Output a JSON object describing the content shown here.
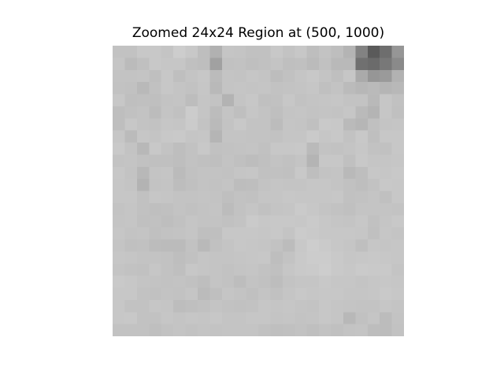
{
  "title": "Zoomed 24x24 Region at (500, 1000)",
  "image": {
    "kind": "grayscale pixel grid",
    "grid_size": [
      24,
      24
    ],
    "pixels": [
      [
        194,
        194,
        200,
        200,
        196,
        205,
        200,
        190,
        177,
        197,
        196,
        193,
        193,
        200,
        195,
        199,
        190,
        195,
        190,
        180,
        130,
        90,
        110,
        150
      ],
      [
        197,
        187,
        192,
        200,
        198,
        198,
        192,
        190,
        161,
        193,
        194,
        191,
        193,
        196,
        191,
        192,
        187,
        193,
        185,
        185,
        112,
        107,
        120,
        138
      ],
      [
        195,
        195,
        196,
        191,
        199,
        191,
        196,
        199,
        187,
        196,
        195,
        198,
        196,
        189,
        193,
        197,
        200,
        196,
        191,
        198,
        170,
        150,
        154,
        178
      ],
      [
        194,
        193,
        185,
        193,
        199,
        196,
        194,
        198,
        185,
        196,
        197,
        196,
        197,
        194,
        195,
        196,
        198,
        192,
        195,
        187,
        183,
        186,
        181,
        184
      ],
      [
        199,
        191,
        192,
        191,
        195,
        196,
        189,
        197,
        195,
        179,
        196,
        199,
        192,
        193,
        199,
        194,
        196,
        197,
        198,
        195,
        195,
        185,
        198,
        193
      ],
      [
        190,
        193,
        195,
        188,
        196,
        193,
        204,
        197,
        188,
        196,
        191,
        198,
        195,
        191,
        196,
        197,
        195,
        196,
        195,
        198,
        186,
        180,
        198,
        192
      ],
      [
        190,
        199,
        195,
        194,
        198,
        197,
        203,
        195,
        186,
        195,
        200,
        195,
        195,
        188,
        197,
        196,
        192,
        201,
        200,
        186,
        182,
        192,
        196,
        197
      ],
      [
        198,
        187,
        198,
        196,
        200,
        201,
        197,
        198,
        181,
        196,
        196,
        195,
        195,
        194,
        197,
        197,
        202,
        198,
        200,
        194,
        200,
        191,
        199,
        199
      ],
      [
        201,
        195,
        184,
        200,
        195,
        190,
        194,
        200,
        193,
        194,
        195,
        196,
        193,
        199,
        199,
        200,
        186,
        195,
        194,
        196,
        199,
        194,
        193,
        199
      ],
      [
        195,
        196,
        193,
        192,
        192,
        190,
        194,
        192,
        191,
        195,
        192,
        189,
        192,
        195,
        193,
        196,
        180,
        199,
        199,
        192,
        200,
        197,
        197,
        198
      ],
      [
        199,
        195,
        184,
        196,
        197,
        187,
        193,
        195,
        195,
        194,
        197,
        198,
        193,
        193,
        192,
        200,
        190,
        195,
        196,
        185,
        190,
        199,
        198,
        200
      ],
      [
        198,
        196,
        179,
        195,
        196,
        189,
        192,
        195,
        194,
        196,
        189,
        190,
        195,
        197,
        196,
        196,
        198,
        198,
        196,
        193,
        190,
        194,
        200,
        199
      ],
      [
        198,
        198,
        193,
        198,
        197,
        195,
        195,
        196,
        195,
        191,
        194,
        193,
        197,
        197,
        199,
        198,
        198,
        198,
        199,
        193,
        194,
        196,
        192,
        199
      ],
      [
        195,
        197,
        193,
        191,
        192,
        195,
        193,
        195,
        196,
        188,
        194,
        197,
        193,
        196,
        197,
        202,
        199,
        196,
        194,
        192,
        196,
        196,
        196,
        195
      ],
      [
        196,
        197,
        192,
        193,
        190,
        193,
        197,
        195,
        195,
        193,
        195,
        202,
        199,
        200,
        200,
        199,
        202,
        199,
        197,
        196,
        199,
        193,
        197,
        200
      ],
      [
        198,
        195,
        196,
        192,
        194,
        195,
        197,
        191,
        191,
        199,
        199,
        199,
        198,
        200,
        196,
        203,
        201,
        199,
        199,
        199,
        198,
        192,
        198,
        196
      ],
      [
        196,
        192,
        193,
        188,
        187,
        187,
        194,
        185,
        193,
        196,
        199,
        198,
        197,
        194,
        188,
        200,
        205,
        202,
        199,
        197,
        191,
        198,
        197,
        198
      ],
      [
        198,
        197,
        195,
        195,
        194,
        190,
        193,
        197,
        196,
        196,
        197,
        198,
        199,
        190,
        195,
        201,
        204,
        204,
        201,
        198,
        199,
        200,
        199,
        198
      ],
      [
        196,
        194,
        193,
        198,
        194,
        191,
        199,
        197,
        196,
        194,
        196,
        197,
        194,
        192,
        198,
        201,
        202,
        205,
        201,
        199,
        202,
        201,
        201,
        196
      ],
      [
        201,
        199,
        196,
        195,
        194,
        195,
        193,
        190,
        196,
        194,
        189,
        195,
        193,
        189,
        195,
        197,
        197,
        200,
        198,
        198,
        196,
        198,
        199,
        198
      ],
      [
        199,
        199,
        194,
        193,
        195,
        194,
        197,
        187,
        191,
        197,
        195,
        192,
        196,
        193,
        197,
        200,
        198,
        199,
        199,
        197,
        197,
        198,
        201,
        199
      ],
      [
        199,
        194,
        194,
        198,
        197,
        189,
        191,
        193,
        196,
        194,
        193,
        194,
        198,
        197,
        198,
        196,
        195,
        199,
        197,
        196,
        195,
        195,
        198,
        196
      ],
      [
        199,
        200,
        194,
        194,
        198,
        196,
        198,
        197,
        199,
        196,
        196,
        198,
        198,
        196,
        197,
        195,
        196,
        199,
        197,
        184,
        193,
        197,
        188,
        195
      ],
      [
        194,
        194,
        194,
        191,
        194,
        196,
        194,
        196,
        195,
        196,
        196,
        196,
        193,
        191,
        192,
        194,
        191,
        194,
        192,
        195,
        196,
        189,
        188,
        194
      ]
    ]
  }
}
